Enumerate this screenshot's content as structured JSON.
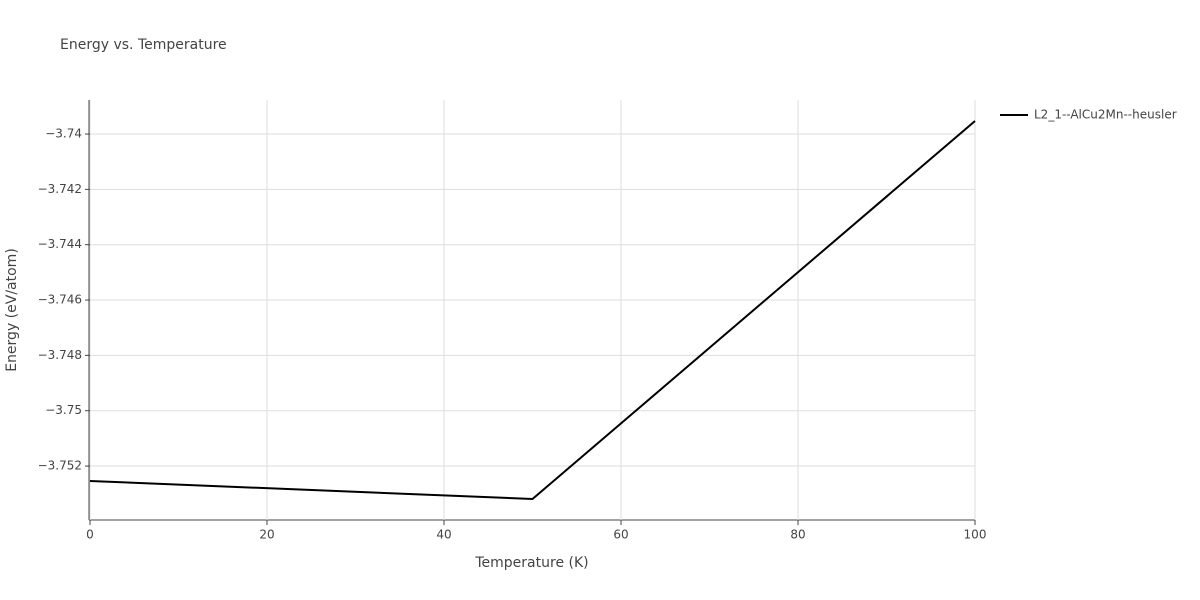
{
  "chart_data": {
    "type": "line",
    "title": "Energy vs. Temperature",
    "x_label": "Temperature (K)",
    "y_label": "Energy (eV/atom)",
    "x": [
      0,
      50,
      100
    ],
    "series": [
      {
        "name": "L2_1--AlCu2Mn--heusler",
        "color": "#000000",
        "values": [
          -3.75254,
          -3.75319,
          -3.73953
        ]
      }
    ],
    "xlim": [
      0,
      100
    ],
    "xticks": [
      0,
      20,
      40,
      60,
      80,
      100
    ],
    "ylim": [
      -3.75395,
      -3.73877
    ],
    "yticks": [
      {
        "value": -3.752,
        "label": "−3.752"
      },
      {
        "value": -3.75,
        "label": "−3.75"
      },
      {
        "value": -3.748,
        "label": "−3.748"
      },
      {
        "value": -3.746,
        "label": "−3.746"
      },
      {
        "value": -3.744,
        "label": "−3.744"
      },
      {
        "value": -3.742,
        "label": "−3.742"
      },
      {
        "value": -3.74,
        "label": "−3.74"
      }
    ],
    "grid": true,
    "legend": "right"
  }
}
